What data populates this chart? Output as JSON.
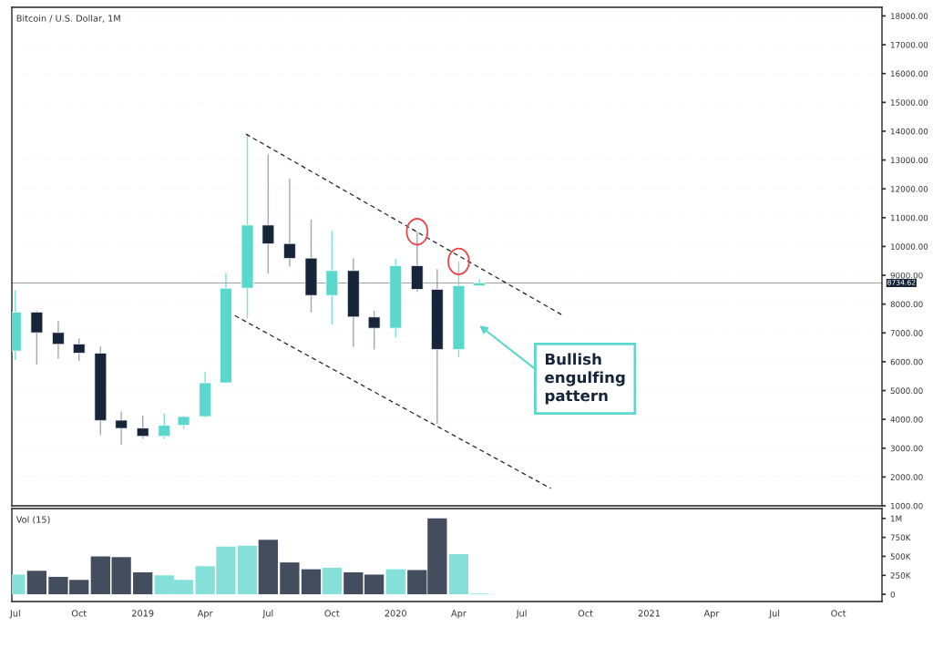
{
  "chart_data": [
    {
      "type": "candlestick",
      "title": "Bitcoin / U.S. Dollar, 1M",
      "x": [
        "2018-07",
        "2018-08",
        "2018-09",
        "2018-10",
        "2018-11",
        "2018-12",
        "2019-01",
        "2019-02",
        "2019-03",
        "2019-04",
        "2019-05",
        "2019-06",
        "2019-07",
        "2019-08",
        "2019-09",
        "2019-10",
        "2019-11",
        "2019-12",
        "2020-01",
        "2020-02",
        "2020-03",
        "2020-04",
        "2020-05"
      ],
      "ohlc": [
        [
          6373,
          8479,
          6057,
          7721
        ],
        [
          7721,
          7763,
          5899,
          7005
        ],
        [
          7015,
          7416,
          6110,
          6605
        ],
        [
          6615,
          6815,
          6026,
          6299
        ],
        [
          6299,
          6531,
          3456,
          3961
        ],
        [
          3972,
          4277,
          3129,
          3687
        ],
        [
          3698,
          4130,
          3329,
          3413
        ],
        [
          3413,
          4193,
          3329,
          3793
        ],
        [
          3793,
          4140,
          3666,
          4098
        ],
        [
          4098,
          5657,
          4056,
          5267
        ],
        [
          5267,
          9080,
          5267,
          8553
        ],
        [
          8553,
          13903,
          7500,
          10744
        ],
        [
          10744,
          13198,
          9059,
          10091
        ],
        [
          10101,
          12345,
          9301,
          9585
        ],
        [
          9596,
          10933,
          7711,
          8300
        ],
        [
          8300,
          10533,
          7289,
          9164
        ],
        [
          9164,
          9585,
          6510,
          7553
        ],
        [
          7553,
          7774,
          6426,
          7163
        ],
        [
          7163,
          9564,
          6847,
          9333
        ],
        [
          9333,
          10512,
          8427,
          8511
        ],
        [
          8511,
          9217,
          3845,
          6426
        ],
        [
          6426,
          9480,
          6162,
          8637
        ],
        [
          8637,
          8848,
          8637,
          8734.62
        ]
      ],
      "colors": [
        "#5ad8cc",
        "#16253a",
        "#16253a",
        "#16253a",
        "#16253a",
        "#16253a",
        "#16253a",
        "#5ad8cc",
        "#5ad8cc",
        "#5ad8cc",
        "#5ad8cc",
        "#5ad8cc",
        "#16253a",
        "#16253a",
        "#16253a",
        "#5ad8cc",
        "#16253a",
        "#16253a",
        "#5ad8cc",
        "#16253a",
        "#16253a",
        "#5ad8cc",
        "#5ad8cc"
      ],
      "series": [
        {
          "type": "line",
          "x": [
            "2019-05-30",
            "2020-08-30"
          ],
          "values": [
            13900,
            7600
          ],
          "color": "#222222",
          "line_style": "dashed",
          "marker": "none"
        },
        {
          "type": "line",
          "x": [
            "2019-05-14",
            "2020-08-12"
          ],
          "values": [
            7600,
            1600
          ],
          "color": "#222222",
          "line_style": "dashed",
          "marker": "none"
        }
      ],
      "xlim": [
        "2018-06-26",
        "2021-12-03"
      ],
      "ylim": [
        1000,
        18300
      ],
      "yticks": [
        {
          "value": 1000,
          "label": "1000.00"
        },
        {
          "value": 2000,
          "label": "2000.00"
        },
        {
          "value": 3000,
          "label": "3000.00"
        },
        {
          "value": 4000,
          "label": "4000.00"
        },
        {
          "value": 5000,
          "label": "5000.00"
        },
        {
          "value": 6000,
          "label": "6000.00"
        },
        {
          "value": 7000,
          "label": "7000.00"
        },
        {
          "value": 8000,
          "label": "8000.00"
        },
        {
          "value": 9000,
          "label": "9000.00"
        },
        {
          "value": 10000,
          "label": "10000.00"
        },
        {
          "value": 11000,
          "label": "11000.00"
        },
        {
          "value": 12000,
          "label": "12000.00"
        },
        {
          "value": 13000,
          "label": "13000.00"
        },
        {
          "value": 14000,
          "label": "14000.00"
        },
        {
          "value": 15000,
          "label": "15000.00"
        },
        {
          "value": 16000,
          "label": "16000.00"
        },
        {
          "value": 17000,
          "label": "17000.00"
        },
        {
          "value": 18000,
          "label": "18000.00"
        }
      ],
      "tick_labels": "y",
      "grid": "y",
      "ref_lines": [
        {
          "axis": "y",
          "value": 8734.62,
          "label": "8734.62",
          "color": "#9aa0a8"
        }
      ],
      "annotations": [
        "Bullish\nengulfing\npattern"
      ]
    },
    {
      "type": "bar",
      "title": "Vol (15)",
      "x": [
        "2018-07",
        "2018-08",
        "2018-09",
        "2018-10",
        "2018-11",
        "2018-12",
        "2019-01",
        "2019-02",
        "2019-03",
        "2019-04",
        "2019-05",
        "2019-06",
        "2019-07",
        "2019-08",
        "2019-09",
        "2019-10",
        "2019-11",
        "2019-12",
        "2020-01",
        "2020-02",
        "2020-03",
        "2020-04",
        "2020-05"
      ],
      "values": [
        260000,
        310000,
        230000,
        190000,
        500000,
        490000,
        290000,
        250000,
        190000,
        370000,
        630000,
        640000,
        720000,
        420000,
        330000,
        350000,
        290000,
        260000,
        330000,
        320000,
        1000000,
        530000,
        10000
      ],
      "colors": [
        "#84e0d8",
        "#434d5e",
        "#434d5e",
        "#434d5e",
        "#434d5e",
        "#434d5e",
        "#434d5e",
        "#84e0d8",
        "#84e0d8",
        "#84e0d8",
        "#84e0d8",
        "#84e0d8",
        "#434d5e",
        "#434d5e",
        "#434d5e",
        "#84e0d8",
        "#434d5e",
        "#434d5e",
        "#84e0d8",
        "#434d5e",
        "#434d5e",
        "#84e0d8",
        "#84e0d8"
      ],
      "xlim": [
        "2018-06-26",
        "2021-12-03"
      ],
      "ylim": [
        -95000,
        1130000
      ],
      "yticks": [
        0,
        {
          "value": 250000,
          "label": "250K"
        },
        {
          "value": 500000,
          "label": "500K"
        },
        {
          "value": 750000,
          "label": "750K"
        },
        {
          "value": 1000000,
          "label": "1M"
        }
      ],
      "xticks": [
        {
          "value": "2018-07",
          "label": "Jul"
        },
        {
          "value": "2018-10",
          "label": "Oct"
        },
        {
          "value": "2019-01",
          "label": "2019"
        },
        {
          "value": "2019-04",
          "label": "Apr"
        },
        {
          "value": "2019-07",
          "label": "Jul"
        },
        {
          "value": "2019-10",
          "label": "Oct"
        },
        {
          "value": "2020-01",
          "label": "2020"
        },
        {
          "value": "2020-04",
          "label": "Apr"
        },
        {
          "value": "2020-07",
          "label": "Jul"
        },
        {
          "value": "2020-10",
          "label": "Oct"
        },
        {
          "value": "2021-01",
          "label": "2021"
        },
        {
          "value": "2021-04",
          "label": "Apr"
        },
        {
          "value": "2021-07",
          "label": "Jul"
        },
        {
          "value": "2021-10",
          "label": "Oct"
        }
      ],
      "grid": false
    }
  ]
}
